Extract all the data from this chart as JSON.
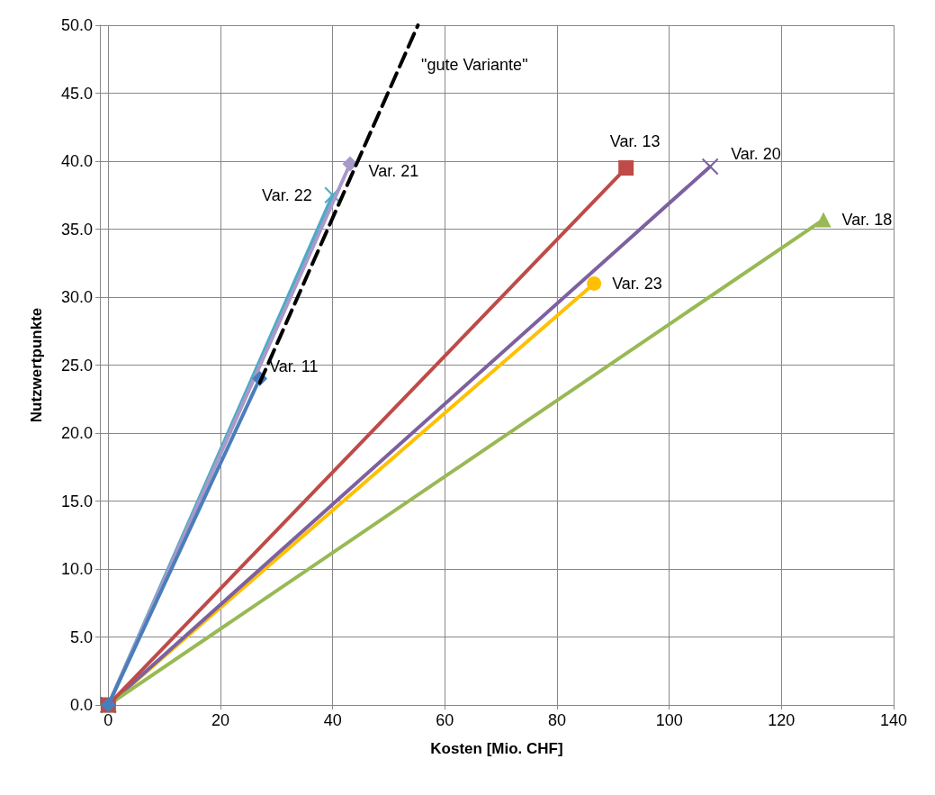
{
  "chart_data": {
    "type": "line",
    "xlabel": "Kosten [Mio. CHF]",
    "ylabel": "Nutzwertpunkte",
    "xlim": [
      -1.5,
      140
    ],
    "xticks": [
      0,
      20,
      40,
      60,
      80,
      100,
      120,
      140
    ],
    "ylim": [
      0,
      50
    ],
    "yticks": [
      {
        "value": 0,
        "label": "0.0"
      },
      {
        "value": 5,
        "label": "5.0"
      },
      {
        "value": 10,
        "label": "10.0"
      },
      {
        "value": 15,
        "label": "15.0"
      },
      {
        "value": 20,
        "label": "20.0"
      },
      {
        "value": 25,
        "label": "25.0"
      },
      {
        "value": 30,
        "label": "30.0"
      },
      {
        "value": 35,
        "label": "35.0"
      },
      {
        "value": 40,
        "label": "40.0"
      },
      {
        "value": 45,
        "label": "45.0"
      },
      {
        "value": 50,
        "label": "50.0"
      }
    ],
    "grid": true,
    "legend": false,
    "annotations": [
      "\"gute Variante\""
    ],
    "series": [
      {
        "name": "Var. 11",
        "color": "#4a7ebb",
        "marker": "diamond",
        "x": [
          0,
          27
        ],
        "values": [
          0,
          24
        ]
      },
      {
        "name": "Var. 13",
        "color": "#be4b48",
        "marker": "square",
        "x": [
          0,
          92.3
        ],
        "values": [
          0,
          39.5
        ]
      },
      {
        "name": "Var. 18",
        "color": "#98b954",
        "marker": "triangle",
        "x": [
          0,
          127.5
        ],
        "values": [
          0,
          35.7
        ]
      },
      {
        "name": "Var. 20",
        "color": "#7d60a0",
        "marker": "cross",
        "x": [
          0,
          107.3
        ],
        "values": [
          0,
          39.6
        ]
      },
      {
        "name": "Var. 21",
        "color": "#a899c9",
        "marker": "diamond",
        "x": [
          0,
          43.1
        ],
        "values": [
          0,
          39.8
        ]
      },
      {
        "name": "Var. 22",
        "color": "#4bacc6",
        "marker": "cross",
        "x": [
          0,
          40
        ],
        "values": [
          0,
          37.5
        ]
      },
      {
        "name": "Var. 23",
        "color": "#ffc000",
        "marker": "circle",
        "x": [
          0,
          86.6
        ],
        "values": [
          0,
          31
        ]
      },
      {
        "color": "#000000",
        "marker": "none",
        "line_style": "dashed",
        "x": [
          27,
          55.2
        ],
        "values": [
          23.7,
          50
        ]
      }
    ]
  }
}
